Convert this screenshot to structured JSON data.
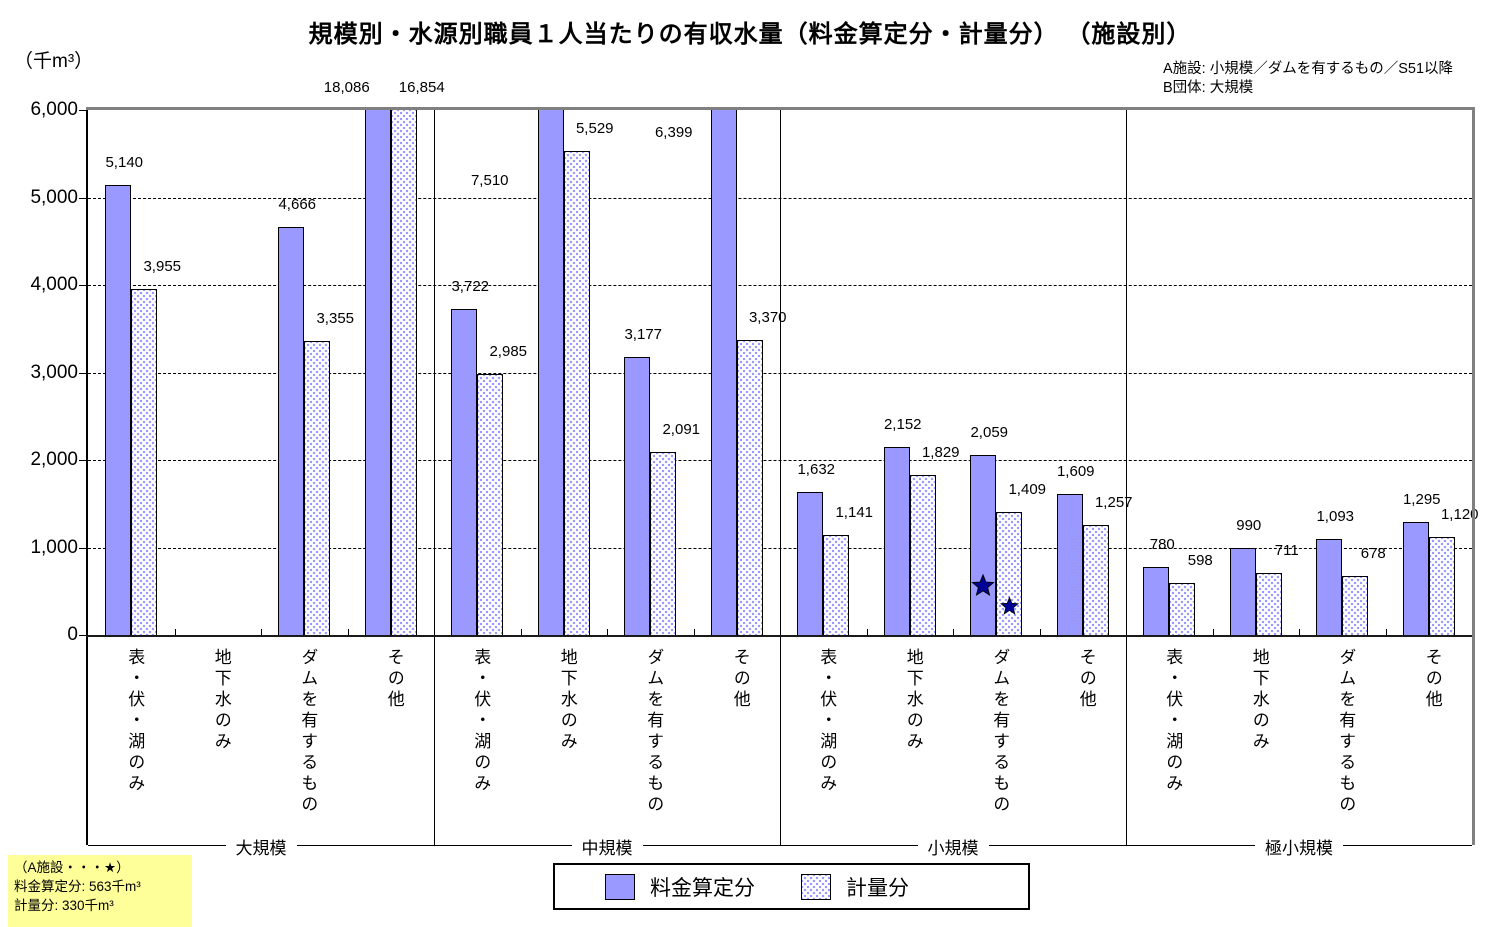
{
  "title": "規模別・水源別職員１人当たりの有収水量（料金算定分・計量分） （施設別）",
  "unit_label": "（千m³）",
  "top_notes": {
    "line1": "A施設: 小規模／ダムを有するもの／S51以降",
    "line2": "B団体: 大規模"
  },
  "note_box": {
    "line1": "（A施設・・・★）",
    "line2": "料金算定分: 563千m³",
    "line3": "計量分: 330千m³",
    "bg_color": "#FFFF99"
  },
  "legend": {
    "fee_label": "料金算定分",
    "metered_label": "計量分"
  },
  "chart_data": {
    "type": "bar",
    "title": "規模別・水源別職員１人当たりの有収水量（料金算定分・計量分）（施設別）",
    "ylabel": "（千m³）",
    "ylim": [
      0,
      6000
    ],
    "ytick_step": 1000,
    "yticks": [
      "0",
      "1,000",
      "2,000",
      "3,000",
      "4,000",
      "5,000",
      "6,000"
    ],
    "grid": "horizontal-dashed",
    "legend_position": "bottom-center",
    "series_names": [
      "料金算定分",
      "計量分"
    ],
    "colors": {
      "bar_fill": "#9999FF",
      "bar_border": "#000000",
      "star": "#000099",
      "frame_gray": "#808080",
      "gridline": "#000000",
      "note_bg": "#FFFF99"
    },
    "groups": [
      {
        "label": "大規模",
        "categories": [
          {
            "label": "表・伏・湖のみ",
            "fee": 5140,
            "metered": 3955
          },
          {
            "label": "地下水のみ",
            "fee": null,
            "metered": null
          },
          {
            "label": "ダムを有するもの",
            "fee": 4666,
            "metered": 3355
          },
          {
            "label": "その他",
            "fee": 18086,
            "metered": 16854,
            "fee_label": {
              "dx": -31
            }
          }
        ]
      },
      {
        "label": "中規模",
        "categories": [
          {
            "label": "表・伏・湖のみ",
            "fee": 3722,
            "metered": 2985
          },
          {
            "label": "地下水のみ",
            "fee": 7510,
            "metered": 5529,
            "fee_label": {
              "dx": -61,
              "y": 172
            }
          },
          {
            "label": "ダムを有するもの",
            "fee": 3177,
            "metered": 2091
          },
          {
            "label": "その他",
            "fee": 6399,
            "metered": 3370,
            "fee_label": {
              "dx": -50,
              "y": 124
            }
          }
        ]
      },
      {
        "label": "小規模",
        "categories": [
          {
            "label": "表・伏・湖のみ",
            "fee": 1632,
            "metered": 1141
          },
          {
            "label": "地下水のみ",
            "fee": 2152,
            "metered": 1829
          },
          {
            "label": "ダムを有するもの",
            "fee": 2059,
            "metered": 1409,
            "stars": {
              "fee": 563,
              "metered": 330
            }
          },
          {
            "label": "その他",
            "fee": 1609,
            "metered": 1257
          }
        ]
      },
      {
        "label": "極小規模",
        "categories": [
          {
            "label": "表・伏・湖のみ",
            "fee": 780,
            "metered": 598
          },
          {
            "label": "地下水のみ",
            "fee": 990,
            "metered": 711
          },
          {
            "label": "ダムを有するもの",
            "fee": 1093,
            "metered": 678
          },
          {
            "label": "その他",
            "fee": 1295,
            "metered": 1120
          }
        ]
      }
    ]
  }
}
